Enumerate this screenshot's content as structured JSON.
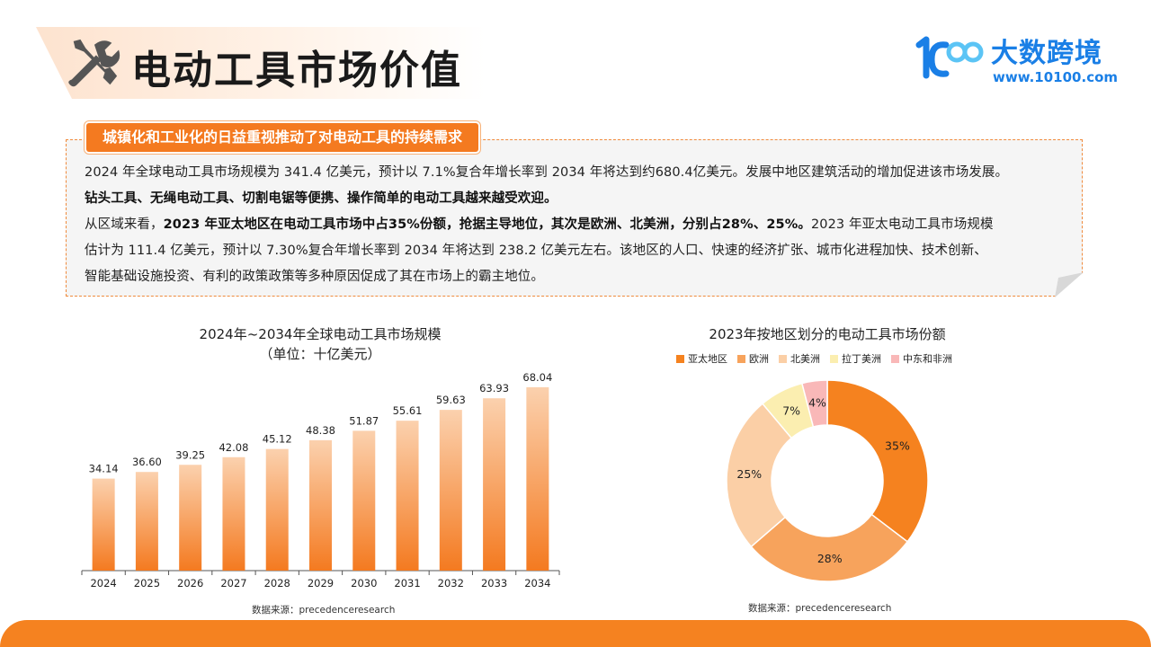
{
  "header": {
    "title": "电动工具市场价值",
    "logo_name": "大数跨境",
    "logo_url": "www.10100.com"
  },
  "summary": {
    "tag": "城镇化和工业化的日益重视推动了对电动工具的持续需求",
    "line1": "2024 年全球电动工具市场规模为 341.4 亿美元，预计以 7.1%复合年增长率到 2034 年将达到约680.4亿美元。发展中地区建筑活动的增加促进该市场发展。",
    "line2": "钻头工具、无绳电动工具、切割电锯等便携、操作简单的电动工具越来越受欢迎。",
    "line3_a": "从区域来看，",
    "line3_b": "2023 年亚太地区在电动工具市场中占35%份额，抢据主导地位，其次是欧洲、北美洲，分别占28%、25%。",
    "line3_c": "2023 年亚太电动工具市场规模",
    "line4": "估计为 111.4 亿美元，预计以 7.30%复合年增长率到 2034 年将达到 238.2 亿美元左右。该地区的人口、快速的经济扩张、城市化进程加快、技术创新、",
    "line5": "智能基础设施投资、有利的政策政策等多种原因促成了其在市场上的霸主地位。"
  },
  "bar_panel": {
    "title_line1": "2024年~2034年全球电动工具市场规模",
    "title_line2": "（单位：十亿美元）",
    "source": "数据来源：precedenceresearch"
  },
  "pie_panel": {
    "title": "2023年按地区划分的电动工具市场份额",
    "source": "数据来源：precedenceresearch"
  },
  "colors": {
    "accent": "#f47a20",
    "bar_top": "#fbd1ae",
    "bar_bottom": "#f47a20",
    "brand_blue": "#1a7fe6"
  },
  "chart_data": [
    {
      "type": "bar",
      "title": "2024年~2034年全球电动工具市场规模",
      "subtitle": "（单位：十亿美元）",
      "categories": [
        "2024",
        "2025",
        "2026",
        "2027",
        "2028",
        "2029",
        "2030",
        "2031",
        "2032",
        "2033",
        "2034"
      ],
      "values": [
        34.14,
        36.6,
        39.25,
        42.08,
        45.12,
        48.38,
        51.87,
        55.61,
        59.63,
        63.93,
        68.04
      ],
      "value_labels": [
        "34.14",
        "36.60",
        "39.25",
        "42.08",
        "45.12",
        "48.38",
        "51.87",
        "55.61",
        "59.63",
        "63.93",
        "68.04"
      ],
      "ylim": [
        0,
        75
      ],
      "grid": false
    },
    {
      "type": "pie",
      "title": "2023年按地区划分的电动工具市场份额",
      "legend_position": "top",
      "donut": true,
      "slices": [
        {
          "label": "亚太地区",
          "value": 35,
          "text": "35%",
          "color": "#f5821f"
        },
        {
          "label": "欧洲",
          "value": 28,
          "text": "28%",
          "color": "#f7a35c"
        },
        {
          "label": "北美洲",
          "value": 25,
          "text": "25%",
          "color": "#fbcfa6"
        },
        {
          "label": "拉丁美洲",
          "value": 7,
          "text": "7%",
          "color": "#fbeeb0"
        },
        {
          "label": "中东和非洲",
          "value": 4,
          "text": "4%",
          "color": "#f9b8b8"
        }
      ]
    }
  ]
}
